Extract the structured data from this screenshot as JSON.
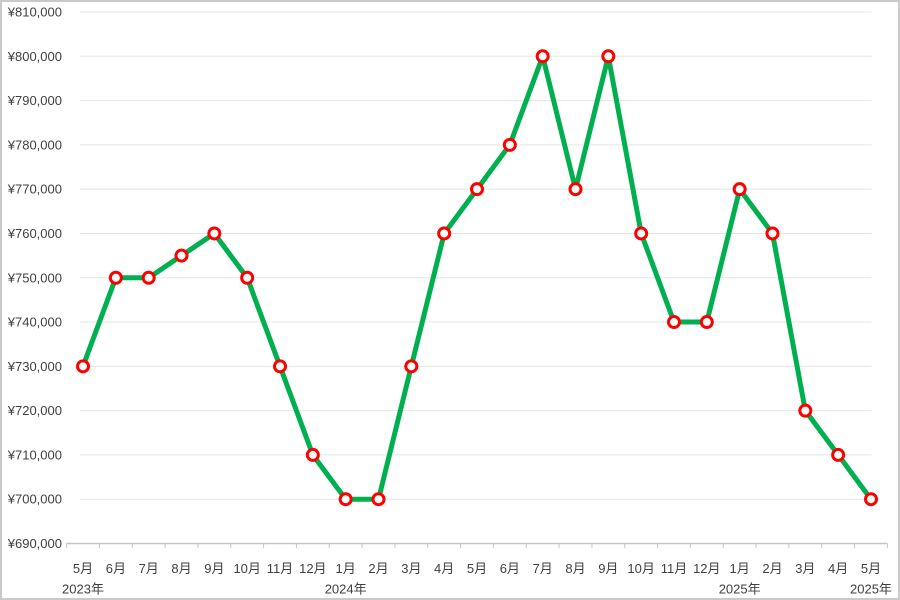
{
  "chart_data": {
    "type": "line",
    "title": "",
    "xlabel": "",
    "ylabel": "",
    "grid": true,
    "legend": false,
    "ylim": [
      690000,
      810000
    ],
    "ytick_step": 10000,
    "y_ticks": [
      {
        "value": 690000,
        "label": "¥690,000"
      },
      {
        "value": 700000,
        "label": "¥700,000"
      },
      {
        "value": 710000,
        "label": "¥710,000"
      },
      {
        "value": 720000,
        "label": "¥720,000"
      },
      {
        "value": 730000,
        "label": "¥730,000"
      },
      {
        "value": 740000,
        "label": "¥740,000"
      },
      {
        "value": 750000,
        "label": "¥750,000"
      },
      {
        "value": 760000,
        "label": "¥760,000"
      },
      {
        "value": 770000,
        "label": "¥770,000"
      },
      {
        "value": 780000,
        "label": "¥780,000"
      },
      {
        "value": 790000,
        "label": "¥790,000"
      },
      {
        "value": 800000,
        "label": "¥800,000"
      },
      {
        "value": 810000,
        "label": "¥810,000"
      }
    ],
    "categories": [
      "5月",
      "6月",
      "7月",
      "8月",
      "9月",
      "10月",
      "11月",
      "12月",
      "1月",
      "2月",
      "3月",
      "4月",
      "5月",
      "6月",
      "7月",
      "8月",
      "9月",
      "10月",
      "11月",
      "12月",
      "1月",
      "2月",
      "3月",
      "4月",
      "5月"
    ],
    "year_labels": [
      {
        "index": 0,
        "label": "2023年"
      },
      {
        "index": 8,
        "label": "2024年"
      },
      {
        "index": 20,
        "label": "2025年"
      },
      {
        "index": 24,
        "label": "2025年"
      }
    ],
    "values": [
      730000,
      750000,
      750000,
      755000,
      760000,
      750000,
      730000,
      710000,
      700000,
      700000,
      730000,
      760000,
      770000,
      780000,
      800000,
      770000,
      800000,
      760000,
      740000,
      740000,
      770000,
      760000,
      720000,
      710000,
      700000
    ],
    "colors": {
      "line": "#00B050",
      "marker_stroke": "#FF0000",
      "marker_fill": "#FFFFFF",
      "gridline": "#E5E5E5",
      "axis": "#C4C4C4",
      "text": "#3F3F3F",
      "frame_border": "#C9C9C9",
      "background": "#FFFFFF"
    }
  }
}
